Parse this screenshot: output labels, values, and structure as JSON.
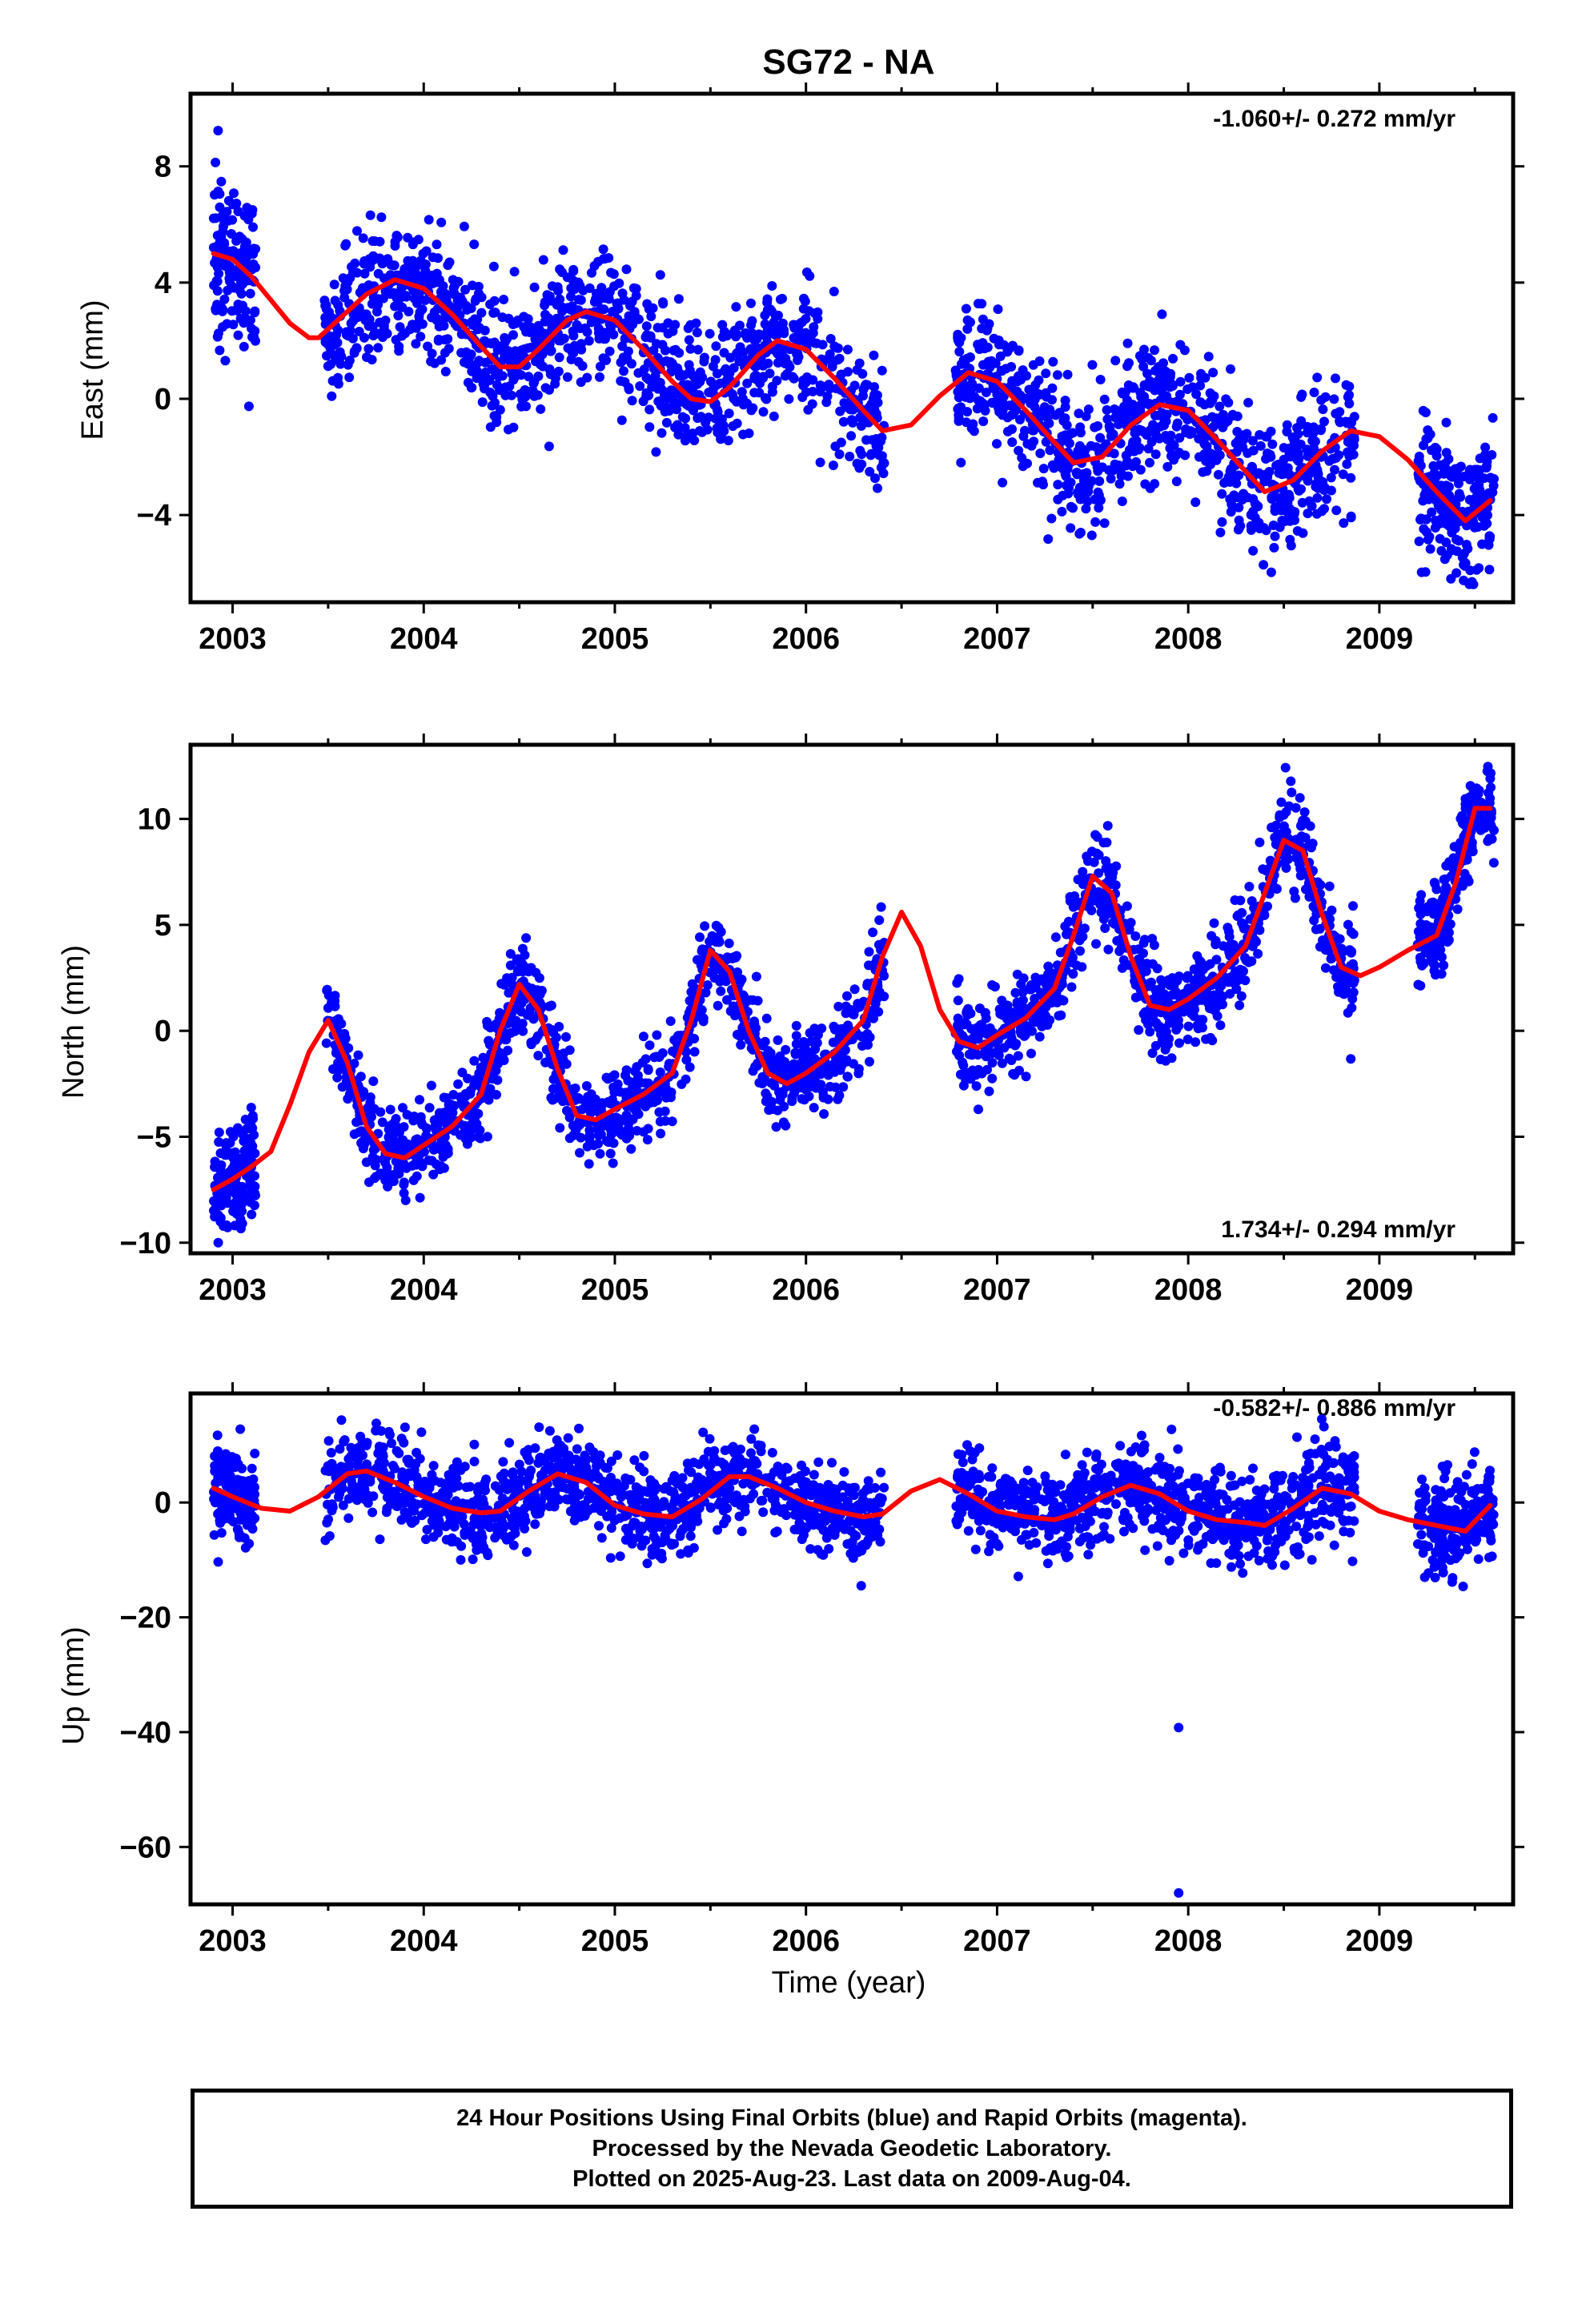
{
  "title": "SG72 - NA",
  "colors": {
    "points": "#0000ff",
    "model": "#ff0000",
    "frame": "#000000"
  },
  "footer": {
    "line1": "24 Hour Positions Using Final Orbits (blue) and Rapid Orbits (magenta).",
    "line2": "Processed by the Nevada Geodetic Laboratory.",
    "line3": "Plotted on 2025-Aug-23. Last data on 2009-Aug-04."
  },
  "chart_data": [
    {
      "type": "scatter",
      "id": "east",
      "ylabel": "East (mm)",
      "xlabel": "",
      "xlim": [
        2002.78,
        2009.7
      ],
      "ylim": [
        -7.0,
        10.5
      ],
      "xticks": [
        2003,
        2004,
        2005,
        2006,
        2007,
        2008,
        2009
      ],
      "yticks": [
        -4,
        0,
        4,
        8
      ],
      "rate_text": "-1.060+/- 0.272 mm/yr",
      "rate_position": "top-right",
      "model_curve": {
        "x": [
          2002.9,
          2003.0,
          2003.1,
          2003.2,
          2003.3,
          2003.4,
          2003.45,
          2003.55,
          2003.7,
          2003.85,
          2004.0,
          2004.15,
          2004.3,
          2004.4,
          2004.5,
          2004.6,
          2004.75,
          2004.85,
          2005.0,
          2005.15,
          2005.3,
          2005.4,
          2005.5,
          2005.6,
          2005.75,
          2005.85,
          2006.0,
          2006.15,
          2006.3,
          2006.4,
          2006.55,
          2006.7,
          2006.85,
          2007.0,
          2007.15,
          2007.3,
          2007.4,
          2007.55,
          2007.7,
          2007.85,
          2008.0,
          2008.15,
          2008.3,
          2008.4,
          2008.55,
          2008.7,
          2008.85,
          2009.0,
          2009.15,
          2009.3,
          2009.45,
          2009.58
        ],
        "y": [
          5.0,
          4.8,
          4.2,
          3.4,
          2.6,
          2.1,
          2.1,
          2.7,
          3.6,
          4.1,
          3.8,
          2.9,
          1.8,
          1.1,
          1.1,
          1.7,
          2.7,
          3.0,
          2.7,
          1.7,
          0.6,
          0.0,
          -0.1,
          0.4,
          1.5,
          2.0,
          1.7,
          0.7,
          -0.4,
          -1.1,
          -0.9,
          0.1,
          0.9,
          0.6,
          -0.4,
          -1.5,
          -2.2,
          -2.0,
          -0.9,
          -0.2,
          -0.4,
          -1.4,
          -2.5,
          -3.2,
          -2.8,
          -1.8,
          -1.1,
          -1.3,
          -2.1,
          -3.2,
          -4.2,
          -3.5
        ]
      },
      "data_segments": [
        {
          "start": 2002.9,
          "end": 2003.12,
          "n": 150,
          "scatter": 1.3
        },
        {
          "start": 2003.48,
          "end": 2006.41,
          "n": 1150,
          "scatter": 1.1
        },
        {
          "start": 2006.78,
          "end": 2008.87,
          "n": 850,
          "scatter": 1.2
        },
        {
          "start": 2009.2,
          "end": 2009.6,
          "n": 230,
          "scatter": 1.1
        }
      ]
    },
    {
      "type": "scatter",
      "id": "north",
      "ylabel": "North (mm)",
      "xlabel": "",
      "xlim": [
        2002.78,
        2009.7
      ],
      "ylim": [
        -10.5,
        13.5
      ],
      "xticks": [
        2003,
        2004,
        2005,
        2006,
        2007,
        2008,
        2009
      ],
      "yticks": [
        -10,
        -5,
        0,
        5,
        10
      ],
      "rate_text": "1.734+/- 0.294 mm/yr",
      "rate_position": "bottom-right",
      "model_curve": {
        "x": [
          2002.9,
          2003.0,
          2003.1,
          2003.2,
          2003.3,
          2003.4,
          2003.5,
          2003.6,
          2003.7,
          2003.8,
          2003.9,
          2004.0,
          2004.15,
          2004.3,
          2004.4,
          2004.5,
          2004.6,
          2004.7,
          2004.8,
          2004.9,
          2005.0,
          2005.15,
          2005.3,
          2005.4,
          2005.5,
          2005.6,
          2005.7,
          2005.8,
          2005.9,
          2006.0,
          2006.15,
          2006.3,
          2006.4,
          2006.5,
          2006.6,
          2006.7,
          2006.8,
          2006.9,
          2007.0,
          2007.15,
          2007.3,
          2007.4,
          2007.5,
          2007.6,
          2007.7,
          2007.8,
          2007.9,
          2008.0,
          2008.15,
          2008.3,
          2008.4,
          2008.5,
          2008.6,
          2008.7,
          2008.8,
          2008.9,
          2009.0,
          2009.15,
          2009.3,
          2009.4,
          2009.5,
          2009.58
        ],
        "y": [
          -7.5,
          -7.0,
          -6.4,
          -5.7,
          -3.5,
          -1.0,
          0.5,
          -1.5,
          -4.5,
          -5.8,
          -6.0,
          -5.4,
          -4.5,
          -3.0,
          0.0,
          2.2,
          1.0,
          -1.8,
          -4.0,
          -4.2,
          -3.7,
          -3.0,
          -2.0,
          0.5,
          3.8,
          2.8,
          0.0,
          -2.0,
          -2.5,
          -2.0,
          -1.0,
          0.5,
          3.5,
          5.6,
          4.0,
          1.0,
          -0.5,
          -0.8,
          -0.2,
          0.6,
          2.0,
          4.5,
          7.3,
          6.5,
          3.5,
          1.2,
          1.0,
          1.5,
          2.5,
          4.0,
          6.5,
          9.0,
          8.5,
          5.5,
          3.0,
          2.6,
          3.0,
          3.8,
          4.5,
          7.0,
          10.5,
          10.5
        ]
      },
      "data_segments": [
        {
          "start": 2002.9,
          "end": 2003.12,
          "n": 150,
          "scatter": 1.3
        },
        {
          "start": 2003.48,
          "end": 2006.41,
          "n": 1150,
          "scatter": 1.0
        },
        {
          "start": 2006.78,
          "end": 2008.87,
          "n": 850,
          "scatter": 1.1
        },
        {
          "start": 2009.2,
          "end": 2009.6,
          "n": 230,
          "scatter": 1.1
        }
      ]
    },
    {
      "type": "scatter",
      "id": "up",
      "ylabel": "Up (mm)",
      "xlabel": "Time (year)",
      "xlim": [
        2002.78,
        2009.7
      ],
      "ylim": [
        -70,
        19
      ],
      "xticks": [
        2003,
        2004,
        2005,
        2006,
        2007,
        2008,
        2009
      ],
      "yticks": [
        -60,
        -40,
        -20,
        0
      ],
      "rate_text": "-0.582+/- 0.886 mm/yr",
      "rate_position": "top-right",
      "model_curve": {
        "x": [
          2002.9,
          2003.0,
          2003.15,
          2003.3,
          2003.45,
          2003.6,
          2003.7,
          2003.85,
          2004.0,
          2004.15,
          2004.3,
          2004.4,
          2004.55,
          2004.7,
          2004.85,
          2005.0,
          2005.15,
          2005.3,
          2005.45,
          2005.6,
          2005.7,
          2005.85,
          2006.0,
          2006.15,
          2006.3,
          2006.4,
          2006.55,
          2006.7,
          2006.85,
          2007.0,
          2007.15,
          2007.3,
          2007.4,
          2007.55,
          2007.7,
          2007.85,
          2008.0,
          2008.15,
          2008.3,
          2008.4,
          2008.55,
          2008.7,
          2008.85,
          2009.0,
          2009.15,
          2009.3,
          2009.45,
          2009.58
        ],
        "y": [
          2.5,
          1.0,
          -1.0,
          -1.5,
          1.0,
          5.0,
          5.5,
          3.5,
          1.0,
          -1.0,
          -1.8,
          -1.5,
          2.0,
          5.0,
          3.5,
          -0.5,
          -2.0,
          -2.5,
          0.5,
          4.5,
          4.5,
          2.5,
          0.0,
          -1.5,
          -2.5,
          -2.0,
          2.0,
          4.0,
          1.5,
          -1.5,
          -2.5,
          -3.0,
          -2.0,
          1.0,
          3.0,
          1.5,
          -1.5,
          -3.0,
          -3.5,
          -4.0,
          -1.0,
          2.5,
          1.5,
          -1.5,
          -3.0,
          -4.0,
          -5.0,
          -0.5
        ]
      },
      "data_segments": [
        {
          "start": 2002.9,
          "end": 2003.12,
          "n": 150,
          "scatter": 4.0
        },
        {
          "start": 2003.48,
          "end": 2006.41,
          "n": 1150,
          "scatter": 3.8
        },
        {
          "start": 2006.78,
          "end": 2008.87,
          "n": 850,
          "scatter": 4.0
        },
        {
          "start": 2009.2,
          "end": 2009.6,
          "n": 230,
          "scatter": 4.0
        }
      ],
      "outliers": [
        {
          "x": 2007.95,
          "y": -39.2
        },
        {
          "x": 2007.95,
          "y": -68.0
        }
      ]
    }
  ]
}
